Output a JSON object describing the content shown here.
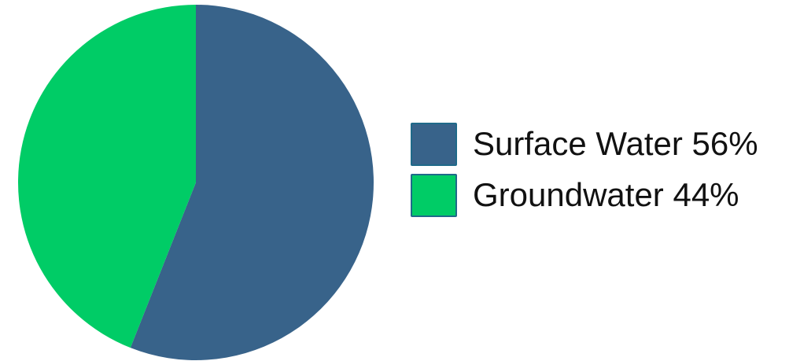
{
  "chart_data": {
    "type": "pie",
    "slices": [
      {
        "name": "Surface Water",
        "value": 56,
        "label": "Surface Water 56%",
        "color": "#38638a"
      },
      {
        "name": "Groundwater",
        "value": 44,
        "label": "Groundwater 44%",
        "color": "#00cc66"
      }
    ],
    "start_angle_deg": 0,
    "direction": "clockwise",
    "legend_position": "right"
  }
}
